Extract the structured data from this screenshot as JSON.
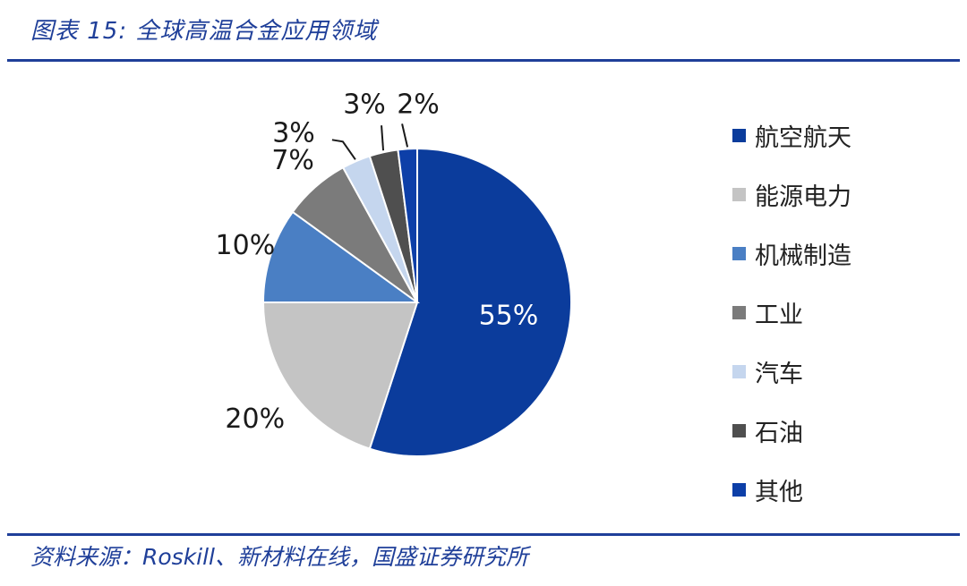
{
  "title": "图表 15:  全球高温合金应用领域",
  "source": "资料来源：Roskill、新材料在线，国盛证券研究所",
  "chart_data": {
    "type": "pie",
    "categories": [
      "航空航天",
      "能源电力",
      "机械制造",
      "工业",
      "汽车",
      "石油",
      "其他"
    ],
    "values": [
      55,
      20,
      10,
      7,
      3,
      3,
      2
    ],
    "labels": [
      "55%",
      "20%",
      "10%",
      "7%",
      "3%",
      "3%",
      "2%"
    ],
    "colors": [
      "#0b3c9c",
      "#c4c4c4",
      "#4a7fc4",
      "#7b7b7b",
      "#c5d6ee",
      "#4f4f4f",
      "#0d3fa8"
    ],
    "legend_position": "right"
  }
}
